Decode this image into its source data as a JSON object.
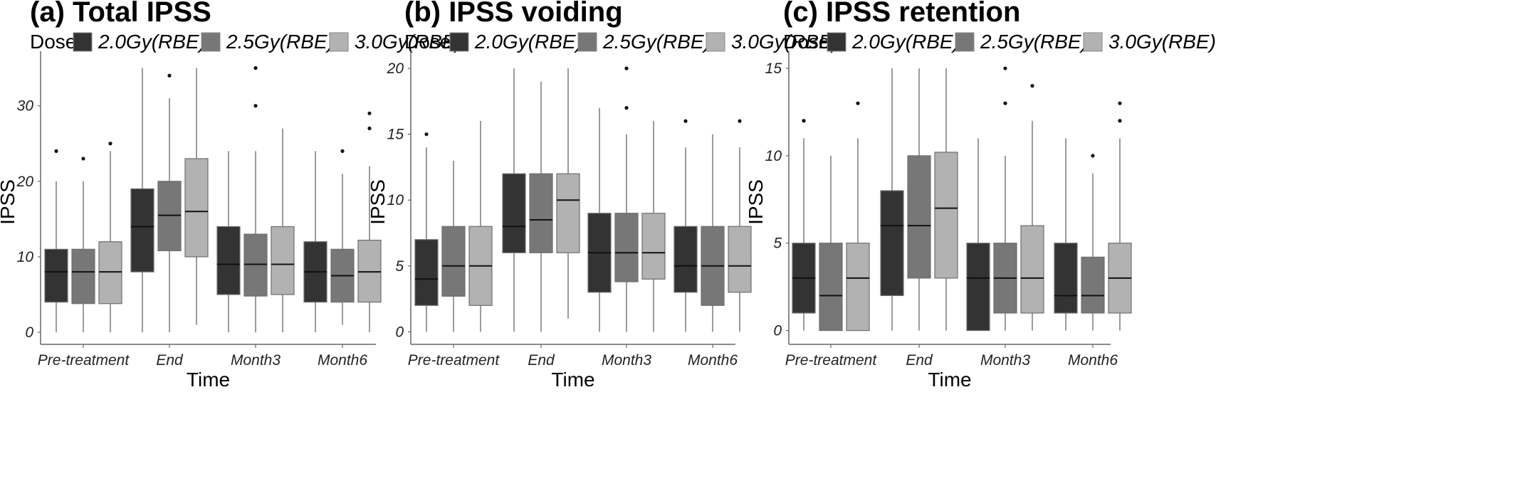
{
  "colors": {
    "2.0Gy(RBE)": "#333333",
    "2.5Gy(RBE)": "#777777",
    "3.0Gy(RBE)": "#b2b2b2",
    "whisker": "#7a7a7a",
    "axis": "#666666"
  },
  "chart_data": [
    {
      "type": "boxplot",
      "title": "(a) Total IPSS",
      "legend_title": "Dose",
      "legend_position": "top",
      "xlabel": "Time",
      "ylabel": "IPSS",
      "ylim": [
        -1.5,
        36
      ],
      "yticks": [
        0,
        10,
        20,
        30
      ],
      "categories": [
        "Pre-treatment",
        "End",
        "Month3",
        "Month6"
      ],
      "grid": false,
      "series": [
        {
          "name": "2.0Gy(RBE)",
          "boxes": [
            {
              "min": 0,
              "q1": 4,
              "median": 8,
              "q3": 11,
              "max": 20,
              "outliers": [
                24
              ]
            },
            {
              "min": 0,
              "q1": 8,
              "median": 14,
              "q3": 19,
              "max": 35,
              "outliers": []
            },
            {
              "min": 0,
              "q1": 5,
              "median": 9,
              "q3": 14,
              "max": 24,
              "outliers": []
            },
            {
              "min": 0,
              "q1": 4,
              "median": 8,
              "q3": 12,
              "max": 24,
              "outliers": []
            }
          ]
        },
        {
          "name": "2.5Gy(RBE)",
          "boxes": [
            {
              "min": 0,
              "q1": 3.8,
              "median": 8,
              "q3": 11,
              "max": 20,
              "outliers": [
                23
              ]
            },
            {
              "min": 0,
              "q1": 10.8,
              "median": 15.5,
              "q3": 20,
              "max": 31,
              "outliers": [
                34
              ]
            },
            {
              "min": 0,
              "q1": 4.8,
              "median": 9,
              "q3": 13,
              "max": 24,
              "outliers": [
                30,
                35
              ]
            },
            {
              "min": 1,
              "q1": 4,
              "median": 7.5,
              "q3": 11,
              "max": 21,
              "outliers": [
                24
              ]
            }
          ]
        },
        {
          "name": "3.0Gy(RBE)",
          "boxes": [
            {
              "min": 0,
              "q1": 3.8,
              "median": 8,
              "q3": 12,
              "max": 24,
              "outliers": [
                25
              ]
            },
            {
              "min": 1,
              "q1": 10,
              "median": 16,
              "q3": 23,
              "max": 35,
              "outliers": []
            },
            {
              "min": 0,
              "q1": 5,
              "median": 9,
              "q3": 14,
              "max": 27,
              "outliers": []
            },
            {
              "min": 0,
              "q1": 4,
              "median": 8,
              "q3": 12.2,
              "max": 22,
              "outliers": [
                27,
                29
              ]
            }
          ]
        }
      ]
    },
    {
      "type": "boxplot",
      "title": "(b) IPSS voiding",
      "legend_title": "Dose",
      "legend_position": "top",
      "xlabel": "Time",
      "ylabel": "IPSS",
      "ylim": [
        -0.9,
        20.6
      ],
      "yticks": [
        0,
        5,
        10,
        15,
        20
      ],
      "categories": [
        "Pre-treatment",
        "End",
        "Month3",
        "Month6"
      ],
      "grid": false,
      "series": [
        {
          "name": "2.0Gy(RBE)",
          "boxes": [
            {
              "min": 0,
              "q1": 2,
              "median": 4,
              "q3": 7,
              "max": 14,
              "outliers": [
                15
              ]
            },
            {
              "min": 0,
              "q1": 6,
              "median": 8,
              "q3": 12,
              "max": 20,
              "outliers": []
            },
            {
              "min": 0,
              "q1": 3,
              "median": 6,
              "q3": 9,
              "max": 17,
              "outliers": []
            },
            {
              "min": 0,
              "q1": 3,
              "median": 5,
              "q3": 8,
              "max": 14,
              "outliers": [
                16
              ]
            }
          ]
        },
        {
          "name": "2.5Gy(RBE)",
          "boxes": [
            {
              "min": 0,
              "q1": 2.7,
              "median": 5,
              "q3": 8,
              "max": 13,
              "outliers": []
            },
            {
              "min": 0,
              "q1": 6,
              "median": 8.5,
              "q3": 12,
              "max": 19,
              "outliers": []
            },
            {
              "min": 0,
              "q1": 3.8,
              "median": 6,
              "q3": 9,
              "max": 15,
              "outliers": [
                17,
                20
              ]
            },
            {
              "min": 0,
              "q1": 2,
              "median": 5,
              "q3": 8,
              "max": 15,
              "outliers": []
            }
          ]
        },
        {
          "name": "3.0Gy(RBE)",
          "boxes": [
            {
              "min": 0,
              "q1": 2,
              "median": 5,
              "q3": 8,
              "max": 16,
              "outliers": []
            },
            {
              "min": 1,
              "q1": 6,
              "median": 10,
              "q3": 12,
              "max": 20,
              "outliers": []
            },
            {
              "min": 0,
              "q1": 4,
              "median": 6,
              "q3": 9,
              "max": 16,
              "outliers": []
            },
            {
              "min": 0,
              "q1": 3,
              "median": 5,
              "q3": 8,
              "max": 14,
              "outliers": [
                16
              ]
            }
          ]
        }
      ]
    },
    {
      "type": "boxplot",
      "title": "(c) IPSS retention",
      "legend_title": "Dose",
      "legend_position": "top",
      "xlabel": "Time",
      "ylabel": "IPSS",
      "ylim": [
        -0.75,
        15.45
      ],
      "yticks": [
        0,
        5,
        10,
        15
      ],
      "categories": [
        "Pre-treatment",
        "End",
        "Month3",
        "Month6"
      ],
      "grid": false,
      "series": [
        {
          "name": "2.0Gy(RBE)",
          "boxes": [
            {
              "min": 0,
              "q1": 1,
              "median": 3,
              "q3": 5,
              "max": 11,
              "outliers": [
                12
              ]
            },
            {
              "min": 0,
              "q1": 2,
              "median": 6,
              "q3": 8,
              "max": 15,
              "outliers": []
            },
            {
              "min": 0,
              "q1": 0,
              "median": 3,
              "q3": 5,
              "max": 11,
              "outliers": []
            },
            {
              "min": 0,
              "q1": 1,
              "median": 2,
              "q3": 5,
              "max": 11,
              "outliers": []
            }
          ]
        },
        {
          "name": "2.5Gy(RBE)",
          "boxes": [
            {
              "min": 0,
              "q1": 0,
              "median": 2,
              "q3": 5,
              "max": 10,
              "outliers": []
            },
            {
              "min": 0,
              "q1": 3,
              "median": 6,
              "q3": 10,
              "max": 15,
              "outliers": []
            },
            {
              "min": 0,
              "q1": 1,
              "median": 3,
              "q3": 5,
              "max": 10,
              "outliers": [
                13,
                15
              ]
            },
            {
              "min": 0,
              "q1": 1,
              "median": 2,
              "q3": 4.2,
              "max": 9,
              "outliers": [
                10
              ]
            }
          ]
        },
        {
          "name": "3.0Gy(RBE)",
          "boxes": [
            {
              "min": 0,
              "q1": 0,
              "median": 3,
              "q3": 5,
              "max": 11,
              "outliers": [
                13
              ]
            },
            {
              "min": 0,
              "q1": 3,
              "median": 7,
              "q3": 10.2,
              "max": 15,
              "outliers": []
            },
            {
              "min": 0,
              "q1": 1,
              "median": 3,
              "q3": 6,
              "max": 12,
              "outliers": [
                14
              ]
            },
            {
              "min": 0,
              "q1": 1,
              "median": 3,
              "q3": 5,
              "max": 11,
              "outliers": [
                12,
                13
              ]
            }
          ]
        }
      ]
    }
  ]
}
